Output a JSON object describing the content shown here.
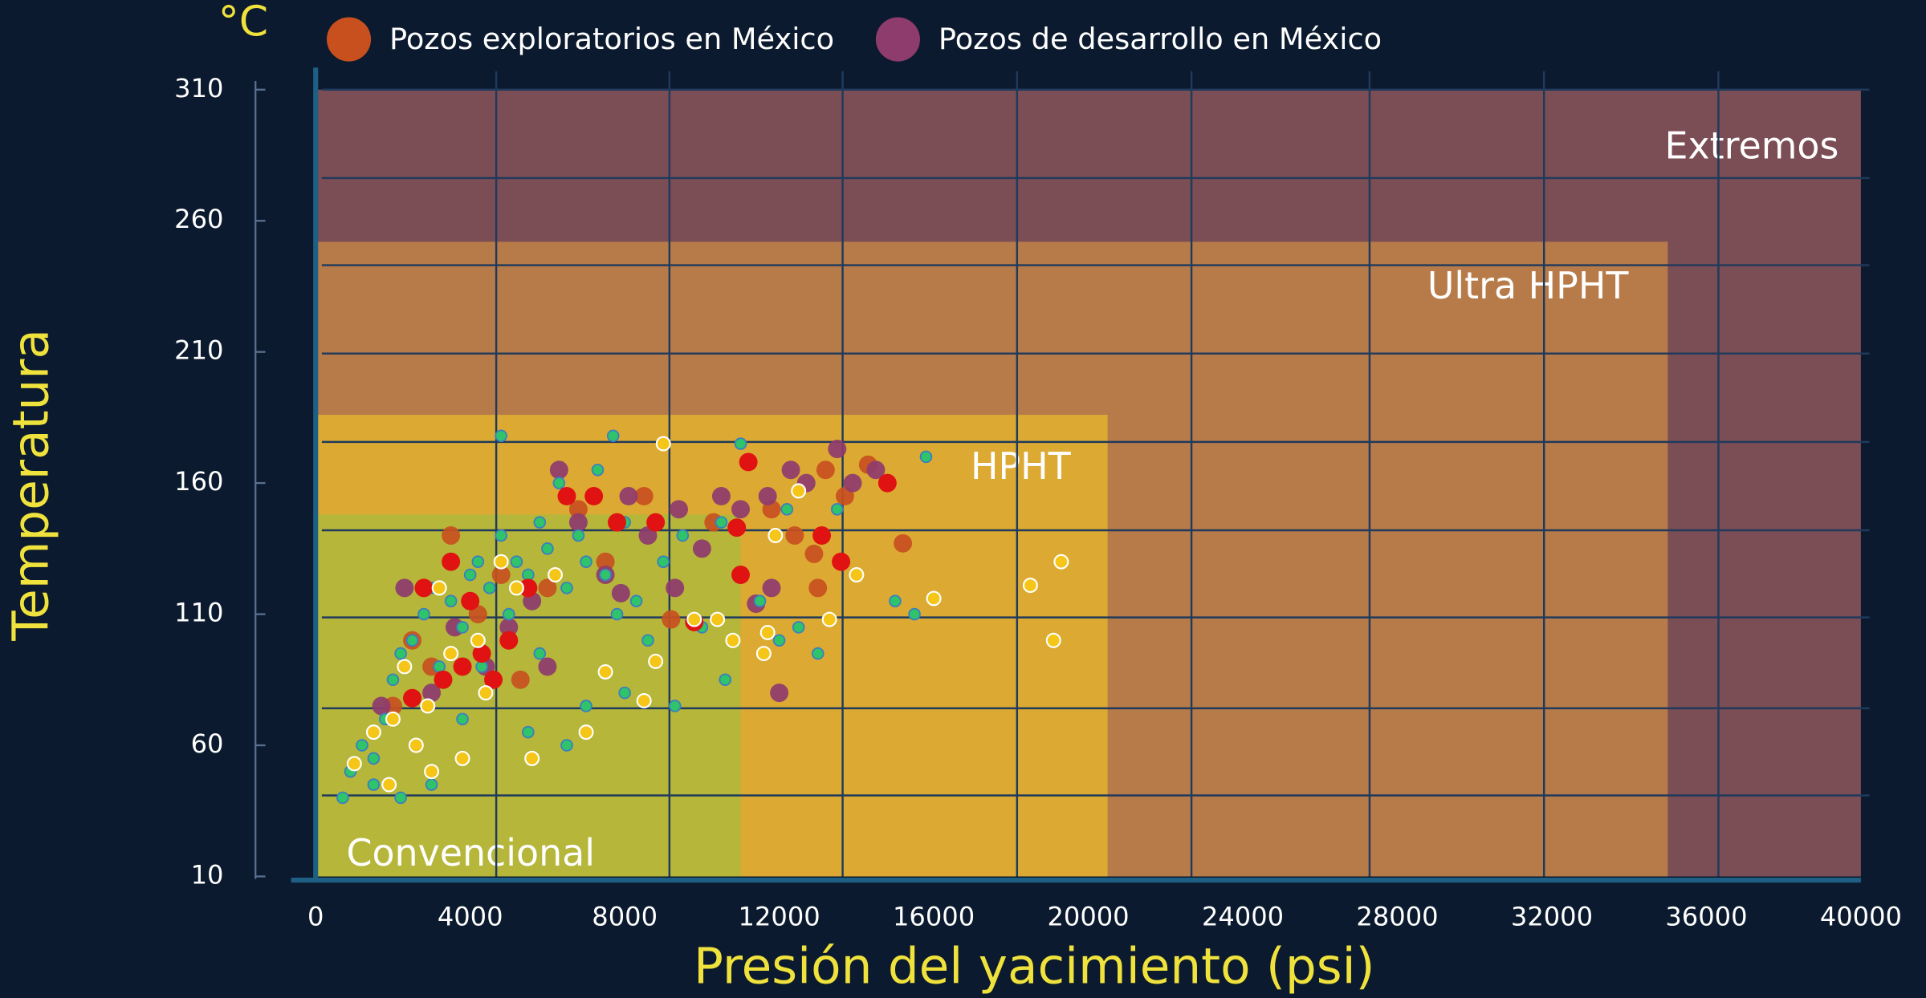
{
  "chart_data": {
    "type": "scatter",
    "y_unit": "°C",
    "xlabel": "Presión del yacimiento (psi)",
    "ylabel": "Temperatura",
    "xlim": [
      0,
      40000
    ],
    "ylim": [
      10,
      310
    ],
    "xticks": [
      0,
      4000,
      8000,
      12000,
      16000,
      20000,
      24000,
      28000,
      32000,
      36000,
      40000
    ],
    "yticks": [
      10,
      60,
      110,
      160,
      210,
      260,
      310
    ],
    "regions": [
      {
        "label": "Extremos",
        "xmax": 40000,
        "ymax": 310,
        "color": "#7b4d54"
      },
      {
        "label": "Ultra HPHT",
        "xmax": 35000,
        "ymax": 252,
        "color": "#b77b49"
      },
      {
        "label": "HPHT",
        "xmax": 20500,
        "ymax": 186,
        "color": "#dcaa32"
      },
      {
        "label": "Convencional",
        "xmax": 11000,
        "ymax": 148,
        "color": "#b5b63a"
      }
    ],
    "series": [
      {
        "color": "#2fc46a",
        "x": [
          700,
          900,
          1200,
          1500,
          1800,
          2000,
          2200,
          2500,
          2800,
          3000,
          3200,
          3500,
          3800,
          4000,
          4200,
          4500,
          4800,
          5000,
          5200,
          5500,
          5800,
          6000,
          6300,
          6500,
          6800,
          7000,
          7300,
          7500,
          7800,
          8000,
          8300,
          8600,
          9000,
          9500,
          10000,
          10500,
          11000,
          11500,
          12000,
          12500,
          13000,
          13500,
          15000,
          15500,
          15800,
          4800,
          7700,
          3000,
          2200,
          1500,
          6500,
          5500,
          7000,
          8000,
          9300,
          10600,
          12200,
          4300,
          3800,
          5800
        ],
        "values": [
          40,
          50,
          60,
          55,
          70,
          85,
          95,
          100,
          110,
          120,
          90,
          115,
          105,
          125,
          130,
          120,
          140,
          110,
          130,
          125,
          145,
          135,
          160,
          120,
          140,
          130,
          165,
          125,
          110,
          145,
          115,
          100,
          130,
          140,
          105,
          145,
          175,
          115,
          100,
          105,
          95,
          150,
          115,
          110,
          170,
          178,
          178,
          45,
          40,
          45,
          60,
          65,
          75,
          80,
          75,
          85,
          150,
          90,
          70,
          95
        ]
      },
      {
        "color": "#f5c518",
        "x": [
          1000,
          1500,
          2000,
          2300,
          2600,
          2900,
          3200,
          3500,
          3800,
          4200,
          4400,
          4800,
          5200,
          5600,
          6200,
          7000,
          7500,
          8500,
          8800,
          9000,
          9800,
          10400,
          10800,
          11600,
          11700,
          12500,
          13300,
          14000,
          16000,
          18500,
          19100,
          19300,
          11900,
          3000,
          1900
        ],
        "values": [
          53,
          65,
          70,
          90,
          60,
          75,
          120,
          95,
          55,
          100,
          80,
          130,
          120,
          55,
          125,
          65,
          88,
          77,
          92,
          175,
          108,
          108,
          100,
          95,
          103,
          157,
          108,
          125,
          116,
          121,
          100,
          130,
          140,
          50,
          45
        ]
      },
      {
        "color": "#e01212",
        "x": [
          2500,
          2800,
          3300,
          3500,
          3800,
          4000,
          4300,
          4600,
          5000,
          5500,
          6500,
          7200,
          7800,
          8800,
          10900,
          11200,
          13100,
          13600,
          14800,
          11000,
          9800
        ],
        "values": [
          78,
          120,
          85,
          130,
          90,
          115,
          95,
          85,
          100,
          120,
          155,
          155,
          145,
          145,
          143,
          168,
          140,
          130,
          160,
          125,
          107
        ]
      },
      {
        "name": "Pozos exploratorios en México",
        "color": "#c8501f",
        "x": [
          2000,
          2500,
          3000,
          3500,
          4200,
          4800,
          5300,
          6000,
          6800,
          7500,
          8500,
          9200,
          10300,
          11800,
          12400,
          13200,
          13700,
          14300,
          15200,
          13000,
          12900
        ],
        "values": [
          75,
          100,
          90,
          140,
          110,
          125,
          85,
          120,
          150,
          130,
          155,
          108,
          145,
          150,
          140,
          165,
          155,
          167,
          137,
          120,
          133
        ]
      },
      {
        "name": "Pozos de desarrollo en México",
        "color": "#8e3b6e",
        "x": [
          1700,
          2300,
          3000,
          3600,
          4400,
          5000,
          5600,
          6300,
          6800,
          7500,
          8100,
          8600,
          9400,
          10000,
          10500,
          11000,
          11700,
          12300,
          12700,
          13500,
          13900,
          14500,
          11400,
          11800,
          12000,
          9300,
          7900,
          6000
        ],
        "values": [
          75,
          120,
          80,
          105,
          90,
          105,
          115,
          165,
          145,
          125,
          155,
          140,
          150,
          135,
          155,
          150,
          155,
          165,
          160,
          173,
          160,
          165,
          114,
          120,
          80,
          120,
          118,
          90
        ]
      }
    ]
  }
}
